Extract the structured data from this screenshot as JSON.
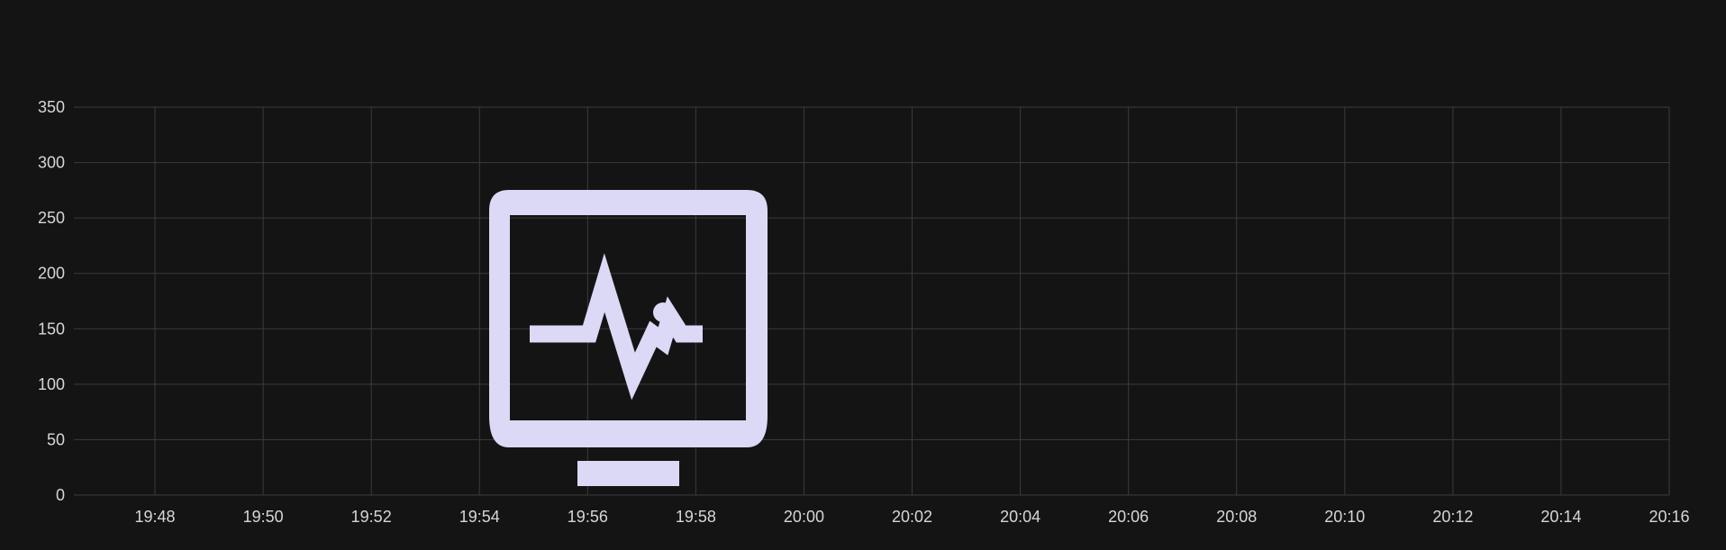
{
  "chart_data": {
    "type": "line",
    "title": "",
    "xlabel": "",
    "ylabel": "",
    "x_ticks": [
      "19:48",
      "19:50",
      "19:52",
      "19:54",
      "19:56",
      "19:58",
      "20:00",
      "20:02",
      "20:04",
      "20:06",
      "20:08",
      "20:10",
      "20:12",
      "20:14",
      "20:16"
    ],
    "x_range": [
      "19:46:30",
      "20:16"
    ],
    "y_ticks": [
      0,
      50,
      100,
      150,
      200,
      250,
      300,
      350
    ],
    "ylim": [
      0,
      350
    ],
    "grid": true,
    "legend": "none",
    "overlay": {
      "icon": "monitor-heartbeat-icon",
      "color": "#dcd9f7"
    },
    "series": []
  },
  "colors": {
    "background": "#141414",
    "grid": "#3b3b3b",
    "tick_label": "#d6d6d6",
    "accent": "#dcd9f7"
  }
}
